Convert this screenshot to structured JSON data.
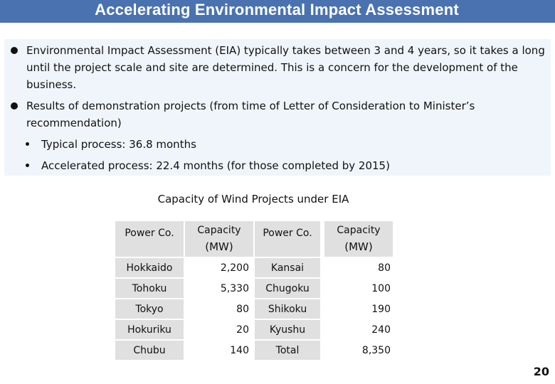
{
  "title": "Accelerating Environmental Impact Assessment",
  "bullets": [
    "Environmental Impact Assessment (EIA) typically takes between 3 and 4 years, so it takes a long until the project scale and site are determined. This is a concern for the development of the business.",
    "Results of demonstration projects (from time of Letter of Consideration to Minister’s recommendation)"
  ],
  "sub_bullets": [
    "Typical process: 36.8 months",
    "Accelerated process: 22.4 months (for those completed by 2015)"
  ],
  "table_title": "Capacity of Wind Projects under EIA",
  "table": {
    "headers": {
      "power_co_1": "Power Co.",
      "capacity_1": "Capacity",
      "unit_1": "(MW)",
      "power_co_2": "Power Co.",
      "capacity_2": "Capacity",
      "unit_2": "(MW)"
    },
    "rows": [
      {
        "co1": "Hokkaido",
        "cap1": "2,200",
        "co2": "Kansai",
        "cap2": "80"
      },
      {
        "co1": "Tohoku",
        "cap1": "5,330",
        "co2": "Chugoku",
        "cap2": "100"
      },
      {
        "co1": "Tokyo",
        "cap1": "80",
        "co2": "Shikoku",
        "cap2": "190"
      },
      {
        "co1": "Hokuriku",
        "cap1": "20",
        "co2": "Kyushu",
        "cap2": "240"
      },
      {
        "co1": "Chubu",
        "cap1": "140",
        "co2": "Total",
        "cap2": "8,350"
      }
    ]
  },
  "page_number": "20",
  "colors": {
    "title_bar": "#4a72b0",
    "info_box": "#f0f5fb",
    "table_grey": "#e0e0e0"
  }
}
